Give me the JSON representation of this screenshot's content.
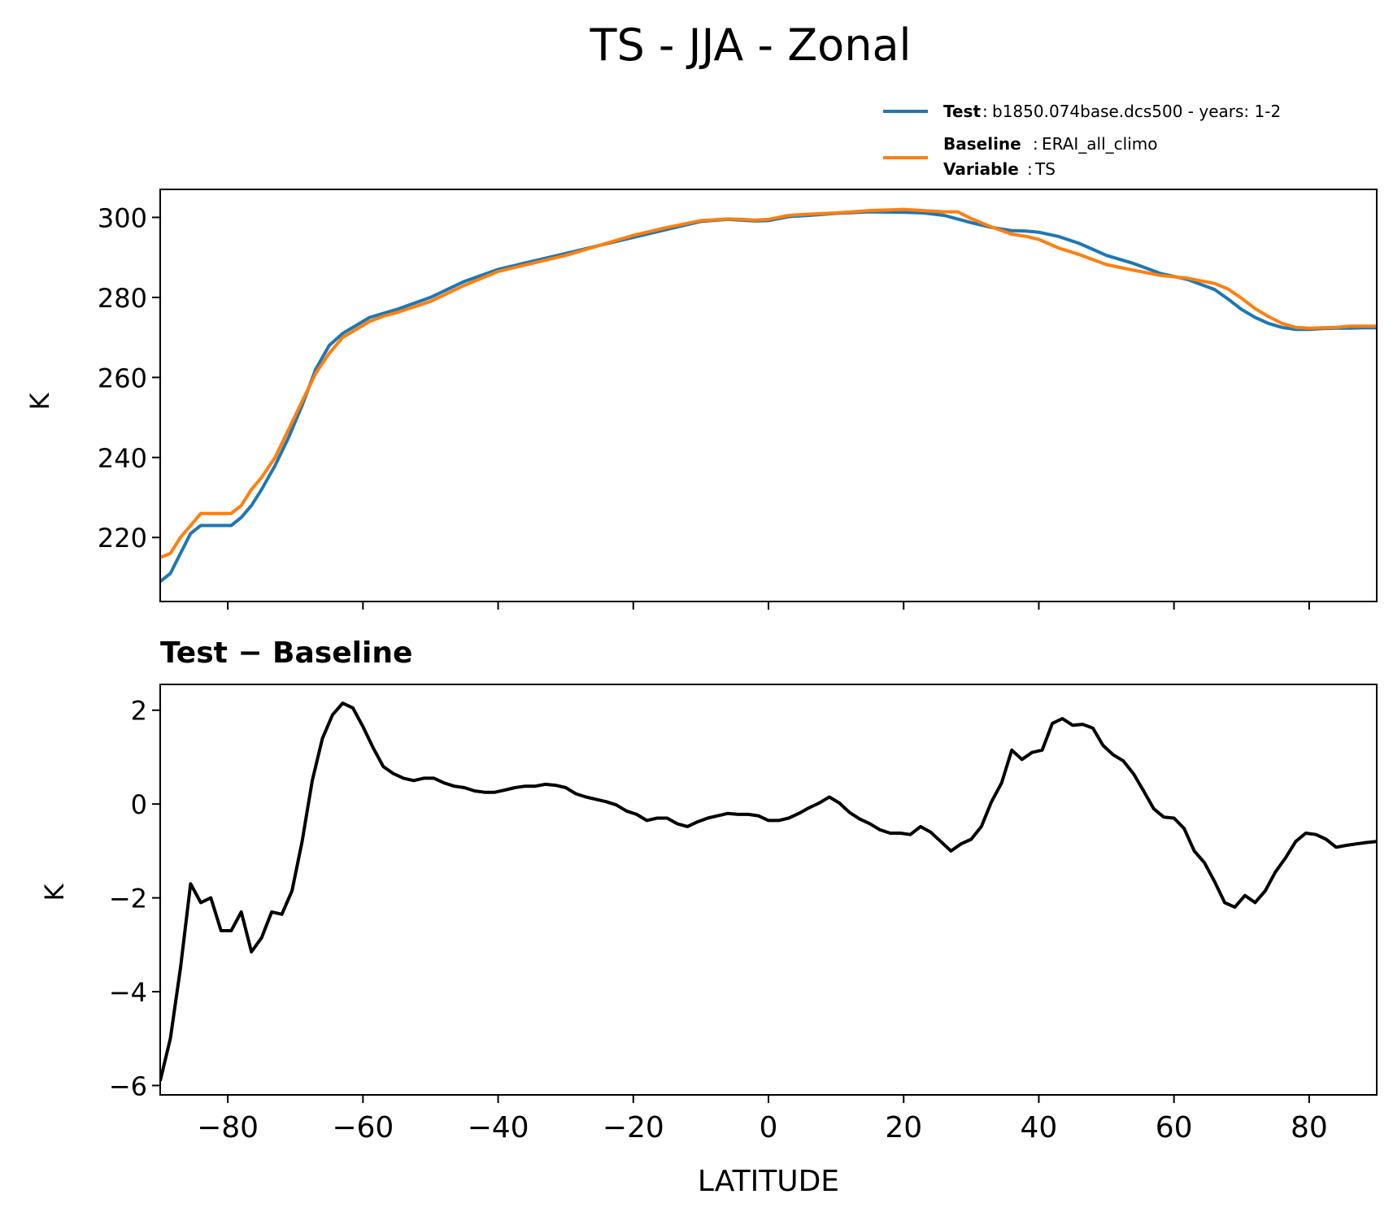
{
  "title": "TS - JJA - Zonal",
  "legend": {
    "position": "top-right",
    "entries": [
      {
        "key": "Test",
        "value": "b1850.074base.dcs500 - years: 1-2",
        "color": "#1f77b4"
      },
      {
        "key": "Baseline",
        "value": "ERAI_all_climo",
        "color": "#ff7f0e"
      },
      {
        "key": "Variable",
        "value": "TS"
      }
    ]
  },
  "chart_data": [
    {
      "type": "line",
      "title": "",
      "xlabel": "",
      "ylabel": "K",
      "xlim": [
        -90,
        90
      ],
      "ylim": [
        204,
        307
      ],
      "yticks": [
        "220",
        "240",
        "260",
        "280",
        "300"
      ],
      "ytick_values": [
        220,
        240,
        260,
        280,
        300
      ],
      "xtick_values": [
        -80,
        -60,
        -40,
        -20,
        0,
        20,
        40,
        60,
        80
      ],
      "series": [
        {
          "name": "Test",
          "color": "#1f77b4",
          "x": [
            -90,
            -88.5,
            -87,
            -85.5,
            -84,
            -82.5,
            -81,
            -79.5,
            -78,
            -76.5,
            -75,
            -73,
            -71,
            -69,
            -67,
            -65,
            -63,
            -61,
            -59,
            -57,
            -55,
            -50,
            -45,
            -40,
            -35,
            -30,
            -25,
            -20,
            -15,
            -10,
            -6,
            -4,
            -2,
            0,
            3,
            6,
            10,
            15,
            20,
            23,
            26,
            28,
            30,
            33,
            36,
            38,
            40,
            43,
            46,
            50,
            54,
            58,
            62,
            66,
            68,
            70,
            72,
            74,
            76,
            78,
            80,
            82,
            84,
            86,
            88,
            90
          ],
          "y": [
            209,
            211,
            216,
            221,
            223,
            223,
            223,
            223,
            225,
            228,
            232,
            238,
            245,
            253,
            262,
            268,
            271,
            273,
            275,
            276,
            277,
            280,
            284,
            287,
            289,
            291,
            293,
            295,
            297,
            299,
            299.5,
            299.3,
            299.1,
            299.2,
            300.2,
            300.5,
            301,
            301.4,
            301.3,
            301.1,
            300.5,
            299.6,
            298.7,
            297.5,
            296.7,
            296.6,
            296.3,
            295.2,
            293.5,
            290.5,
            288.5,
            286,
            284.5,
            282,
            279.6,
            277,
            275,
            273.5,
            272.5,
            272,
            272,
            272.2,
            272.3,
            272.3,
            272.4,
            272.4
          ]
        },
        {
          "name": "Baseline",
          "color": "#ff7f0e",
          "x": [
            -90,
            -88.5,
            -87,
            -85.5,
            -84,
            -82.5,
            -81,
            -79.5,
            -78,
            -76.5,
            -75,
            -73,
            -71,
            -69,
            -67,
            -65,
            -63,
            -61,
            -59,
            -57,
            -55,
            -50,
            -45,
            -40,
            -35,
            -30,
            -25,
            -20,
            -15,
            -10,
            -6,
            -4,
            -2,
            0,
            3,
            6,
            10,
            15,
            20,
            23,
            26,
            28,
            30,
            33,
            36,
            38,
            40,
            43,
            46,
            50,
            54,
            58,
            62,
            66,
            68,
            70,
            72,
            74,
            76,
            78,
            80,
            82,
            84,
            86,
            88,
            90
          ],
          "y": [
            215,
            216,
            220,
            223,
            226,
            226,
            226,
            226,
            228,
            232,
            235,
            240,
            247,
            254,
            261,
            266,
            270,
            272,
            274,
            275.3,
            276.2,
            279,
            283,
            286.5,
            288.5,
            290.5,
            293,
            295.5,
            297.5,
            299.2,
            299.6,
            299.5,
            299.3,
            299.5,
            300.5,
            300.8,
            301.1,
            301.7,
            302,
            301.7,
            301.4,
            301.4,
            299.7,
            297.6,
            295.8,
            295.3,
            294.5,
            292.3,
            290.7,
            288.2,
            286.8,
            285.5,
            284.8,
            283.5,
            282.1,
            279.8,
            277.2,
            275.2,
            273.5,
            272.5,
            272.3,
            272.4,
            272.5,
            272.8,
            272.8,
            272.8
          ]
        }
      ]
    },
    {
      "type": "line",
      "title": "Test − Baseline",
      "xlabel": "LATITUDE",
      "ylabel": "K",
      "xlim": [
        -90,
        90
      ],
      "ylim": [
        -6.2,
        2.55
      ],
      "yticks": [
        "−6",
        "−4",
        "−2",
        "0",
        "2"
      ],
      "ytick_values": [
        -6,
        -4,
        -2,
        0,
        2
      ],
      "xticks": [
        "−80",
        "−60",
        "−40",
        "−20",
        "0",
        "20",
        "40",
        "60",
        "80"
      ],
      "xtick_values": [
        -80,
        -60,
        -40,
        -20,
        0,
        20,
        40,
        60,
        80
      ],
      "series": [
        {
          "name": "Test − Baseline",
          "color": "#000000",
          "x": [
            -90,
            -88.5,
            -87,
            -85.5,
            -84,
            -82.5,
            -81,
            -79.5,
            -78,
            -76.5,
            -75,
            -73.5,
            -72,
            -70.5,
            -69,
            -67.5,
            -66,
            -64.5,
            -63,
            -61.5,
            -60,
            -58.5,
            -57,
            -55.5,
            -54,
            -52.5,
            -51,
            -49.5,
            -48,
            -46.5,
            -45,
            -43.5,
            -42,
            -40.5,
            -39,
            -37.5,
            -36,
            -34.5,
            -33,
            -31.5,
            -30,
            -28.5,
            -27,
            -25.5,
            -24,
            -22.5,
            -21,
            -19.5,
            -18,
            -16.5,
            -15,
            -13.5,
            -12,
            -10.5,
            -9,
            -7.5,
            -6,
            -4.5,
            -3,
            -1.5,
            0,
            1.5,
            3,
            4.5,
            6,
            7.5,
            9,
            10.5,
            12,
            13.5,
            15,
            16.5,
            18,
            19.5,
            21,
            22.5,
            24,
            25.5,
            27,
            28.5,
            30,
            31.5,
            33,
            34.5,
            36,
            37.5,
            39,
            40.5,
            42,
            43.5,
            45,
            46.5,
            48,
            49.5,
            51,
            52.5,
            54,
            55.5,
            57,
            58.5,
            60,
            61.5,
            63,
            64.5,
            66,
            67.5,
            69,
            70.5,
            72,
            73.5,
            75,
            76.5,
            78,
            79.5,
            81,
            82.5,
            84,
            85.5,
            87,
            88.5,
            90
          ],
          "y": [
            -5.9,
            -5,
            -3.5,
            -1.7,
            -2.1,
            -2,
            -2.7,
            -2.7,
            -2.3,
            -3.15,
            -2.85,
            -2.3,
            -2.35,
            -1.85,
            -0.8,
            0.5,
            1.4,
            1.9,
            2.15,
            2.05,
            1.65,
            1.2,
            0.8,
            0.65,
            0.55,
            0.5,
            0.55,
            0.55,
            0.45,
            0.38,
            0.35,
            0.28,
            0.25,
            0.25,
            0.3,
            0.35,
            0.38,
            0.38,
            0.42,
            0.4,
            0.35,
            0.22,
            0.15,
            0.1,
            0.05,
            -0.02,
            -0.15,
            -0.22,
            -0.35,
            -0.3,
            -0.3,
            -0.42,
            -0.48,
            -0.38,
            -0.3,
            -0.25,
            -0.2,
            -0.22,
            -0.22,
            -0.25,
            -0.35,
            -0.35,
            -0.3,
            -0.2,
            -0.08,
            0.02,
            0.15,
            0.02,
            -0.18,
            -0.32,
            -0.42,
            -0.55,
            -0.62,
            -0.62,
            -0.65,
            -0.48,
            -0.6,
            -0.8,
            -1,
            -0.85,
            -0.75,
            -0.48,
            0.05,
            0.45,
            1.15,
            0.95,
            1.1,
            1.15,
            1.72,
            1.82,
            1.68,
            1.7,
            1.62,
            1.25,
            1.05,
            0.92,
            0.65,
            0.28,
            -0.1,
            -0.28,
            -0.3,
            -0.52,
            -1,
            -1.25,
            -1.65,
            -2.1,
            -2.2,
            -1.95,
            -2.1,
            -1.85,
            -1.45,
            -1.15,
            -0.8,
            -0.62,
            -0.65,
            -0.75,
            -0.92,
            -0.88,
            -0.85,
            -0.82,
            -0.8
          ]
        }
      ]
    }
  ]
}
